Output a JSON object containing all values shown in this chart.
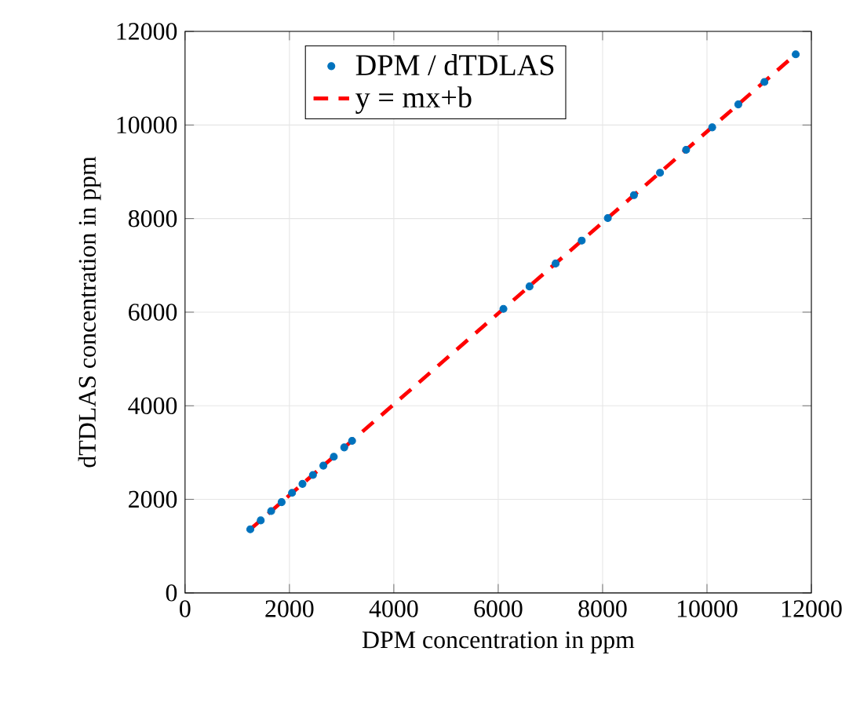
{
  "chart_data": {
    "type": "scatter",
    "xlabel": "DPM concentration in ppm",
    "ylabel": "dTDLAS concentration in ppm",
    "xlim": [
      0,
      12000
    ],
    "ylim": [
      0,
      12000
    ],
    "xticks": [
      0,
      2000,
      4000,
      6000,
      8000,
      10000,
      12000
    ],
    "yticks": [
      0,
      2000,
      4000,
      6000,
      8000,
      10000,
      12000
    ],
    "grid": true,
    "legend": "top",
    "marker": "circle",
    "series": [
      {
        "name": "DPM / dTDLAS",
        "color": "#0072bd",
        "x": [
          1250,
          1450,
          1650,
          1850,
          2050,
          2250,
          2450,
          2650,
          2850,
          3050,
          3200,
          6100,
          6600,
          7100,
          7600,
          8100,
          8600,
          9100,
          9600,
          10100,
          10600,
          11100,
          11700
        ],
        "values": [
          1360,
          1550,
          1750,
          1940,
          2140,
          2330,
          2520,
          2720,
          2910,
          3110,
          3250,
          6070,
          6550,
          7040,
          7530,
          8010,
          8500,
          8980,
          9470,
          9950,
          10440,
          10920,
          11510
        ]
      },
      {
        "name": "y = mx+b",
        "type": "line",
        "line_style": "dashed",
        "marker": "none",
        "color": "#ff0000",
        "x": [
          1230,
          11730
        ],
        "values": [
          1340,
          11540
        ]
      }
    ]
  }
}
